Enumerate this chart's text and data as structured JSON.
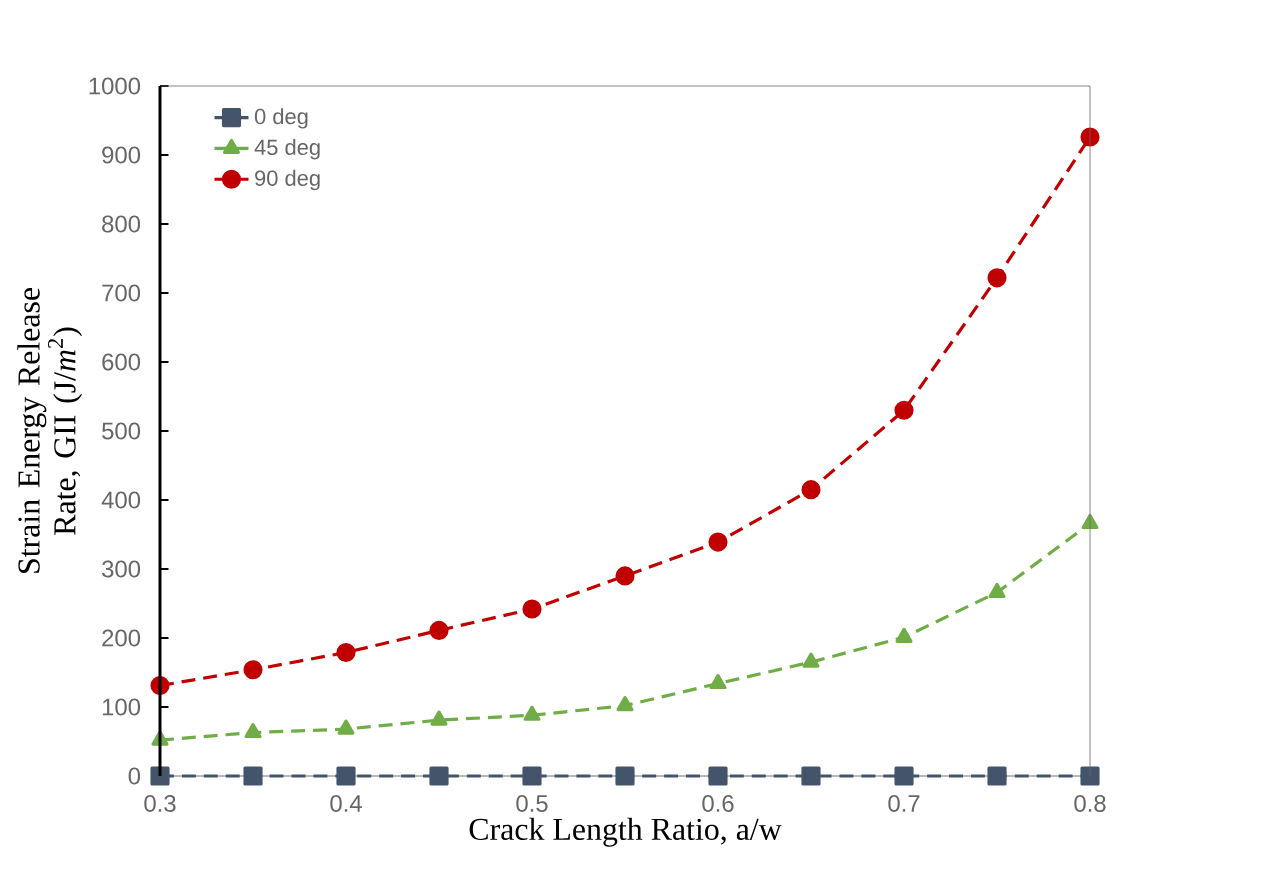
{
  "chart_data": {
    "type": "line",
    "xlabel": "Crack Length  Ratio, a/w",
    "ylabel": "Strain Energy Release Rate, GII (J/*m*$^{2}$)",
    "x": [
      0.3,
      0.35,
      0.4,
      0.45,
      0.5,
      0.55,
      0.6,
      0.65,
      0.7,
      0.75,
      0.8
    ],
    "series": [
      {
        "name": "0 deg",
        "color": "#44546a",
        "marker": "square",
        "line_style": "dashed",
        "values": [
          0,
          0,
          0,
          0,
          0,
          0,
          0,
          0,
          0,
          0,
          0
        ]
      },
      {
        "name": "45 deg",
        "color": "#70ad47",
        "marker": "triangle",
        "line_style": "dashed",
        "values": [
          52,
          63,
          68,
          81,
          88,
          102,
          134,
          165,
          201,
          266,
          366
        ]
      },
      {
        "name": "90 deg",
        "color": "#c00000",
        "marker": "circle",
        "line_style": "dashed",
        "values": [
          131,
          154,
          179,
          211,
          242,
          290,
          339,
          415,
          530,
          722,
          926
        ]
      }
    ],
    "xlim": [
      0.3,
      0.8
    ],
    "xticks": [
      0.3,
      0.4,
      0.5,
      0.6,
      0.7,
      0.8
    ],
    "ylim": [
      0,
      1000
    ],
    "yticks": [
      0,
      100,
      200,
      300,
      400,
      500,
      600,
      700,
      800,
      900,
      1000
    ],
    "grid": false,
    "legend": "top left"
  }
}
